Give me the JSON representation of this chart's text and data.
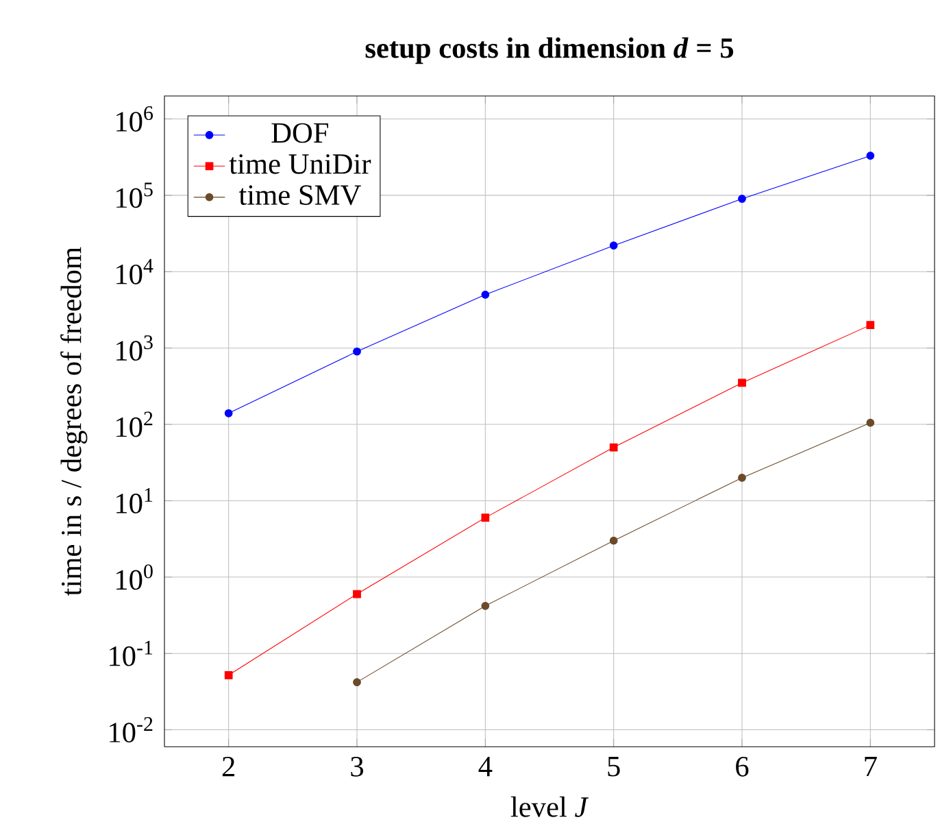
{
  "chart_data": {
    "type": "line",
    "title": "setup costs in dimension *d* = 5",
    "xlabel": "level *J*",
    "ylabel": "time in s / degrees of freedom",
    "log": "y",
    "grid": true,
    "legend": "top left",
    "xlim": [
      1.5,
      7.5
    ],
    "xticks": [
      2,
      3,
      4,
      5,
      6,
      7
    ],
    "ylim": [
      0.006,
      2000000
    ],
    "yticks": [
      {
        "value": 0.01,
        "label": "10$^{-2}$"
      },
      {
        "value": 0.1,
        "label": "10$^{-1}$"
      },
      {
        "value": 1,
        "label": "10$^{0}$"
      },
      {
        "value": 10,
        "label": "10$^{1}$"
      },
      {
        "value": 100,
        "label": "10$^{2}$"
      },
      {
        "value": 1000,
        "label": "10$^{3}$"
      },
      {
        "value": 10000,
        "label": "10$^{4}$"
      },
      {
        "value": 100000,
        "label": "10$^{5}$"
      },
      {
        "value": 1000000,
        "label": "10$^{6}$"
      }
    ],
    "series": [
      {
        "name": "DOF",
        "color": "#0000ff",
        "marker": "circle",
        "x": [
          2,
          3,
          4,
          5,
          6,
          7
        ],
        "values": [
          140,
          900,
          5000,
          22000,
          90000,
          330000
        ]
      },
      {
        "name": "time UniDir",
        "color": "#ff0000",
        "marker": "square",
        "x": [
          2,
          3,
          4,
          5,
          6,
          7
        ],
        "values": [
          0.052,
          0.6,
          6,
          50,
          350,
          2000
        ]
      },
      {
        "name": "time SMV",
        "color": "#6b4a2a",
        "marker": "circle",
        "x": [
          3,
          4,
          5,
          6,
          7
        ],
        "values": [
          0.042,
          0.42,
          3,
          20,
          105
        ]
      }
    ]
  }
}
